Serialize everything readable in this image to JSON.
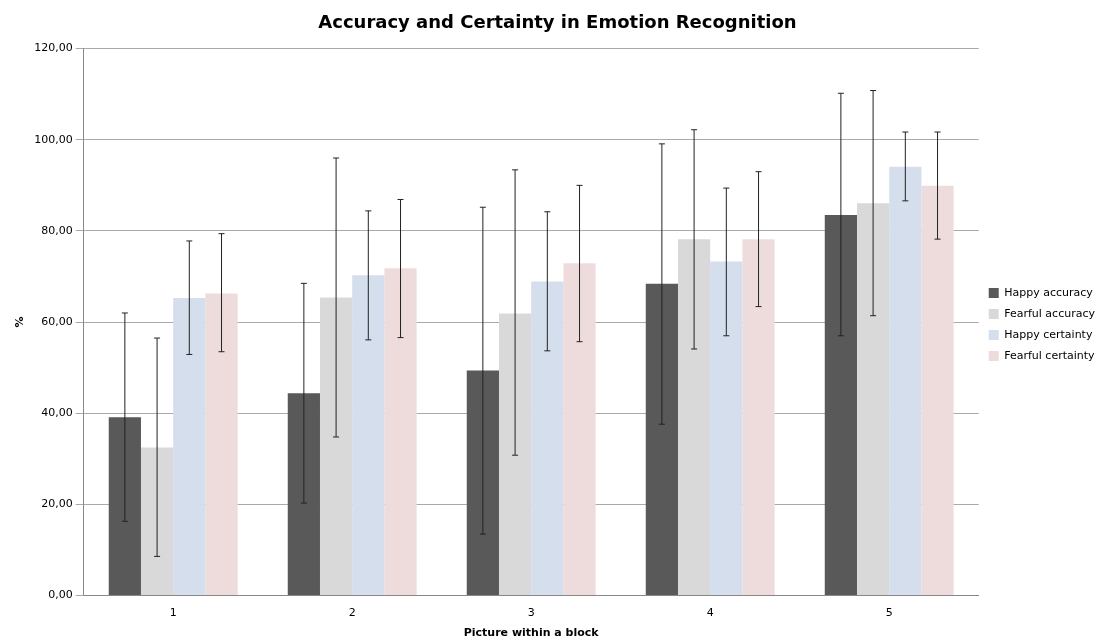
{
  "chart_data": {
    "type": "bar",
    "title": "Accuracy and Certainty in Emotion Recognition",
    "xlabel": "Picture within a block",
    "ylabel": "%",
    "categories": [
      "1",
      "2",
      "3",
      "4",
      "5"
    ],
    "series": [
      {
        "name": "Happy accuracy",
        "color": "#595959",
        "values": [
          39.1,
          44.4,
          49.4,
          68.4,
          83.5
        ],
        "errors": [
          [
            16.3,
            62.0
          ],
          [
            20.3,
            68.5
          ],
          [
            13.5,
            85.2
          ],
          [
            37.6,
            99.1
          ],
          [
            57.0,
            110.2
          ]
        ]
      },
      {
        "name": "Fearful accuracy",
        "color": "#d9d9d9",
        "values": [
          32.5,
          65.4,
          61.9,
          78.2,
          86.1
        ],
        "errors": [
          [
            8.6,
            56.5
          ],
          [
            34.8,
            96.0
          ],
          [
            30.8,
            93.4
          ],
          [
            54.1,
            102.2
          ],
          [
            61.4,
            110.8
          ]
        ]
      },
      {
        "name": "Happy certainty",
        "color": "#d5deec",
        "values": [
          65.3,
          70.3,
          68.9,
          73.3,
          94.1
        ],
        "errors": [
          [
            52.9,
            77.8
          ],
          [
            56.1,
            84.4
          ],
          [
            53.7,
            84.2
          ],
          [
            57.0,
            89.4
          ],
          [
            86.6,
            101.7
          ]
        ]
      },
      {
        "name": "Fearful certainty",
        "color": "#eedcdc",
        "values": [
          66.3,
          71.8,
          72.9,
          78.2,
          89.9
        ],
        "errors": [
          [
            53.5,
            79.4
          ],
          [
            56.6,
            86.9
          ],
          [
            55.7,
            90.0
          ],
          [
            63.4,
            93.0
          ],
          [
            78.2,
            101.7
          ]
        ]
      }
    ],
    "ylim": [
      0,
      120
    ],
    "yticks": [
      {
        "value": 0,
        "label": "0,00"
      },
      {
        "value": 20,
        "label": "20,00"
      },
      {
        "value": 40,
        "label": "40,00"
      },
      {
        "value": 60,
        "label": "60,00"
      },
      {
        "value": 80,
        "label": "80,00"
      },
      {
        "value": 100,
        "label": "100,00"
      },
      {
        "value": 120,
        "label": "120,00"
      }
    ],
    "grid": "y",
    "legend": "right"
  }
}
